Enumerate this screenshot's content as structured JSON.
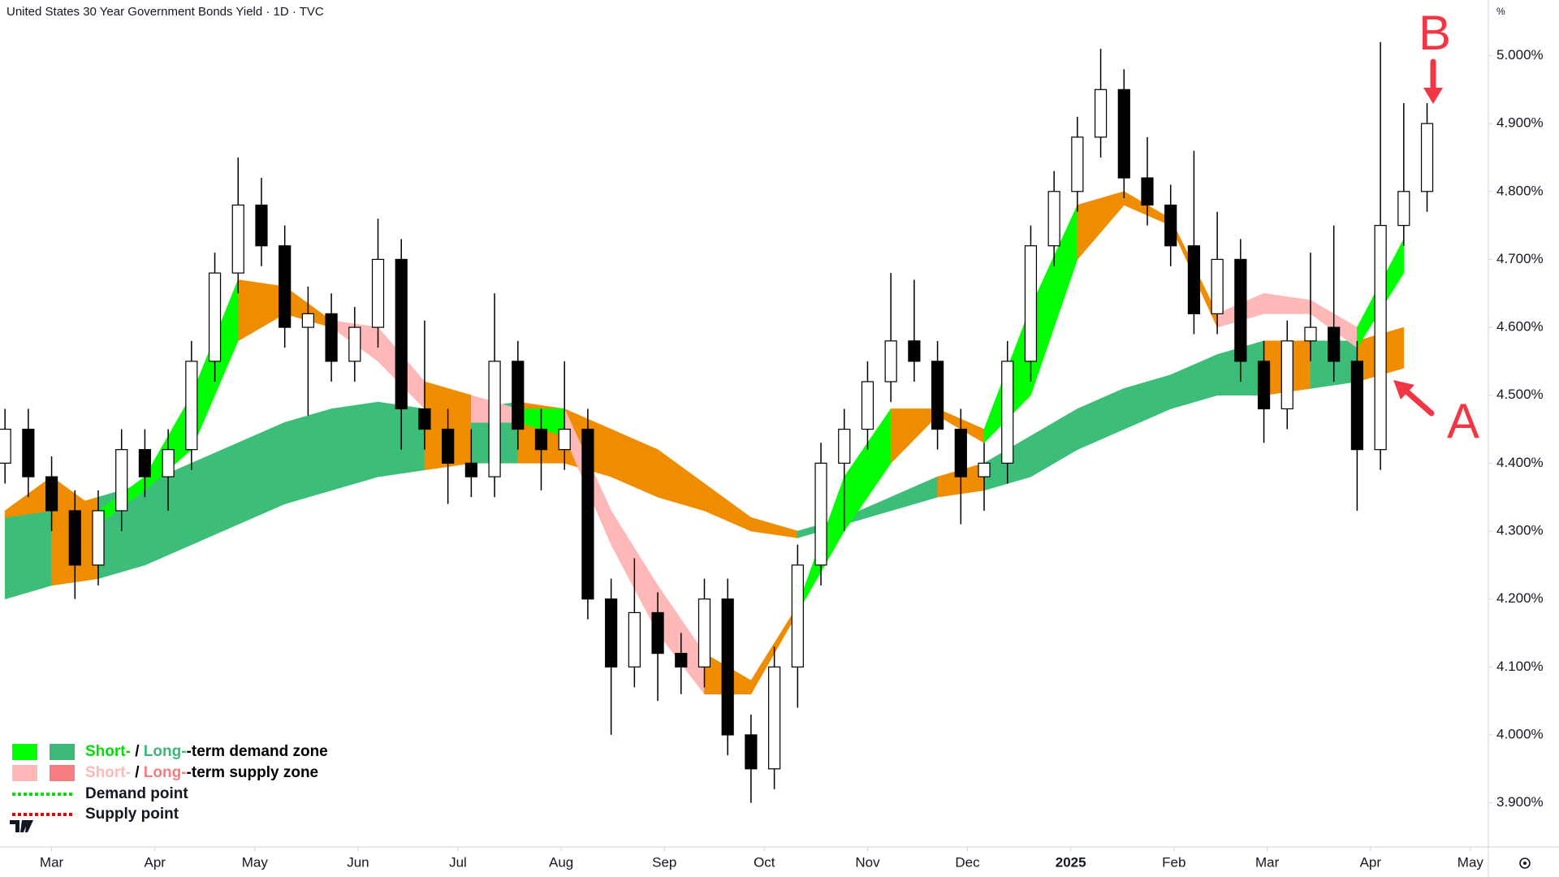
{
  "chart_data": {
    "type": "candlestick",
    "title": "United States 30 Year Government Bonds Yield · 1D · TVC",
    "unit_label": "%",
    "x": [
      -14,
      -7,
      0,
      7,
      14,
      21,
      28,
      35,
      42,
      49,
      56,
      63,
      70,
      77,
      84,
      91,
      98,
      105,
      112,
      119,
      126,
      133,
      140,
      147,
      154,
      161,
      168,
      175,
      182,
      189,
      196,
      203,
      210,
      217,
      224,
      231,
      238,
      245,
      252,
      259,
      266,
      273,
      280,
      287,
      294,
      301,
      308,
      315,
      322,
      329,
      336,
      343,
      350,
      357,
      364,
      371,
      378,
      385,
      392,
      399,
      406,
      413
    ],
    "open": [
      4.4,
      4.45,
      4.38,
      4.33,
      4.25,
      4.33,
      4.42,
      4.38,
      4.42,
      4.55,
      4.68,
      4.78,
      4.72,
      4.6,
      4.62,
      4.55,
      4.6,
      4.7,
      4.48,
      4.45,
      4.4,
      4.38,
      4.55,
      4.45,
      4.42,
      4.45,
      4.2,
      4.1,
      4.18,
      4.12,
      4.1,
      4.2,
      4.0,
      3.95,
      4.1,
      4.25,
      4.4,
      4.45,
      4.52,
      4.58,
      4.55,
      4.45,
      4.38,
      4.4,
      4.55,
      4.72,
      4.8,
      4.88,
      4.95,
      4.82,
      4.78,
      4.72,
      4.62,
      4.7,
      4.55,
      4.48,
      4.58,
      4.6,
      4.55,
      4.42,
      4.75,
      4.8
    ],
    "high": [
      4.48,
      4.48,
      4.41,
      4.36,
      4.36,
      4.45,
      4.45,
      4.45,
      4.58,
      4.71,
      4.85,
      4.82,
      4.75,
      4.66,
      4.65,
      4.63,
      4.76,
      4.73,
      4.61,
      4.48,
      4.45,
      4.65,
      4.58,
      4.48,
      4.55,
      4.48,
      4.23,
      4.26,
      4.21,
      4.15,
      4.23,
      4.23,
      4.03,
      4.13,
      4.28,
      4.43,
      4.48,
      4.55,
      4.68,
      4.67,
      4.58,
      4.48,
      4.43,
      4.58,
      4.75,
      4.83,
      4.91,
      5.01,
      4.98,
      4.88,
      4.81,
      4.86,
      4.77,
      4.73,
      4.58,
      4.61,
      4.71,
      4.75,
      4.58,
      5.02,
      4.93,
      4.93
    ],
    "low": [
      4.37,
      4.35,
      4.3,
      4.2,
      4.22,
      4.3,
      4.35,
      4.33,
      4.39,
      4.52,
      4.65,
      4.69,
      4.57,
      4.47,
      4.52,
      4.52,
      4.57,
      4.42,
      4.42,
      4.34,
      4.35,
      4.35,
      4.42,
      4.36,
      4.39,
      4.17,
      4.0,
      4.07,
      4.05,
      4.06,
      4.07,
      3.97,
      3.9,
      3.92,
      4.04,
      4.22,
      4.3,
      4.42,
      4.49,
      4.52,
      4.42,
      4.31,
      4.33,
      4.37,
      4.52,
      4.69,
      4.77,
      4.85,
      4.79,
      4.75,
      4.69,
      4.59,
      4.59,
      4.52,
      4.43,
      4.45,
      4.55,
      4.52,
      4.33,
      4.39,
      4.72,
      4.77
    ],
    "close": [
      4.45,
      4.38,
      4.33,
      4.25,
      4.33,
      4.42,
      4.38,
      4.42,
      4.55,
      4.68,
      4.78,
      4.72,
      4.6,
      4.62,
      4.55,
      4.6,
      4.7,
      4.48,
      4.45,
      4.4,
      4.38,
      4.55,
      4.45,
      4.42,
      4.45,
      4.2,
      4.1,
      4.18,
      4.12,
      4.1,
      4.2,
      4.0,
      3.95,
      4.1,
      4.25,
      4.4,
      4.45,
      4.52,
      4.58,
      4.55,
      4.45,
      4.38,
      4.4,
      4.55,
      4.72,
      4.8,
      4.88,
      4.95,
      4.82,
      4.78,
      4.72,
      4.62,
      4.7,
      4.55,
      4.48,
      4.58,
      4.6,
      4.55,
      4.42,
      4.75,
      4.8,
      4.9
    ],
    "up_color": "#ffffff",
    "down_color": "#000000",
    "bands": [
      {
        "x": [
          -14,
          0,
          14,
          28,
          42,
          56,
          70,
          84,
          98,
          112,
          126,
          140,
          154,
          168,
          182,
          196,
          210,
          224,
          238,
          252,
          266,
          280,
          294,
          308,
          322,
          336,
          350,
          364,
          378,
          392,
          406
        ],
        "upper": [
          4.32,
          4.33,
          4.35,
          4.37,
          4.4,
          4.43,
          4.46,
          4.48,
          4.49,
          4.48,
          4.48,
          4.49,
          4.48,
          4.45,
          4.42,
          4.37,
          4.32,
          4.3,
          4.32,
          4.35,
          4.38,
          4.4,
          4.44,
          4.48,
          4.51,
          4.53,
          4.56,
          4.58,
          4.58,
          4.58,
          4.6
        ],
        "lower": [
          4.2,
          4.22,
          4.23,
          4.25,
          4.28,
          4.31,
          4.34,
          4.36,
          4.38,
          4.39,
          4.4,
          4.4,
          4.4,
          4.38,
          4.35,
          4.33,
          4.3,
          4.29,
          4.31,
          4.33,
          4.35,
          4.36,
          4.38,
          4.42,
          4.45,
          4.48,
          4.5,
          4.5,
          4.51,
          4.52,
          4.54
        ],
        "colors": [
          "#3cbe78",
          "#f08c00",
          "#3cbe78",
          "#3cbe78",
          "#3cbe78",
          "#3cbe78",
          "#3cbe78",
          "#3cbe78",
          "#3cbe78",
          "#f08c00",
          "#3cbe78",
          "#f08c00",
          "#f08c00",
          "#f08c00",
          "#f08c00",
          "#f08c00",
          "#f08c00",
          "#3cbe78",
          "#3cbe78",
          "#3cbe78",
          "#f08c00",
          "#3cbe78",
          "#3cbe78",
          "#3cbe78",
          "#3cbe78",
          "#3cbe78",
          "#3cbe78",
          "#f08c00",
          "#3cbe78",
          "#f08c00",
          "#3cbe78"
        ]
      },
      {
        "x": [
          -14,
          0,
          14,
          28,
          42,
          56,
          70,
          84,
          98,
          112,
          126,
          140,
          154,
          168,
          182,
          196,
          210,
          224,
          238,
          252,
          266,
          280,
          294,
          308,
          322,
          336,
          350,
          364,
          378,
          392,
          406
        ],
        "upper": [
          4.33,
          4.38,
          4.33,
          4.38,
          4.5,
          4.67,
          4.66,
          4.61,
          4.6,
          4.52,
          4.5,
          4.48,
          4.48,
          4.33,
          4.22,
          4.12,
          4.08,
          4.19,
          4.38,
          4.48,
          4.48,
          4.45,
          4.63,
          4.78,
          4.8,
          4.76,
          4.62,
          4.65,
          4.64,
          4.6,
          4.73
        ],
        "lower": [
          4.32,
          4.33,
          4.31,
          4.36,
          4.42,
          4.58,
          4.62,
          4.6,
          4.55,
          4.48,
          4.46,
          4.46,
          4.44,
          4.28,
          4.15,
          4.06,
          4.06,
          4.18,
          4.3,
          4.4,
          4.47,
          4.43,
          4.5,
          4.7,
          4.78,
          4.75,
          4.6,
          4.62,
          4.62,
          4.57,
          4.68
        ],
        "colors": [
          "#f08c00",
          "#f08c00",
          "#00ff00",
          "#00ff00",
          "#00ff00",
          "#f08c00",
          "#f08c00",
          "#ffb8b8",
          "#ffb8b8",
          "#f08c00",
          "#ffb8b8",
          "#00ff00",
          "#ffb8b8",
          "#ffb8b8",
          "#ffb8b8",
          "#f08c00",
          "#f08c00",
          "#00ff00",
          "#00ff00",
          "#f08c00",
          "#f08c00",
          "#00ff00",
          "#00ff00",
          "#f08c00",
          "#f08c00",
          "#f08c00",
          "#ffb8b8",
          "#ffb8b8",
          "#ffb8b8",
          "#00ff00",
          "#00ff00"
        ]
      }
    ],
    "xlim": [
      -15.5,
      431.4
    ],
    "ylim": [
      3.835,
      5.052
    ],
    "xticks": [
      {
        "value": 0,
        "label": "Mar"
      },
      {
        "value": 31,
        "label": "Apr"
      },
      {
        "value": 61,
        "label": "May"
      },
      {
        "value": 92,
        "label": "Jun"
      },
      {
        "value": 122,
        "label": "Jul"
      },
      {
        "value": 153,
        "label": "Aug"
      },
      {
        "value": 184,
        "label": "Sep"
      },
      {
        "value": 214,
        "label": "Oct"
      },
      {
        "value": 245,
        "label": "Nov"
      },
      {
        "value": 275,
        "label": "Dec"
      },
      {
        "value": 306,
        "label": "2025"
      },
      {
        "value": 337,
        "label": "Feb"
      },
      {
        "value": 365,
        "label": "Mar"
      },
      {
        "value": 396,
        "label": "Apr"
      },
      {
        "value": 426,
        "label": "May"
      }
    ],
    "yticks": [
      {
        "value": 3.9,
        "label": "3.900%"
      },
      {
        "value": 4.0,
        "label": "4.000%"
      },
      {
        "value": 4.1,
        "label": "4.100%"
      },
      {
        "value": 4.2,
        "label": "4.200%"
      },
      {
        "value": 4.3,
        "label": "4.300%"
      },
      {
        "value": 4.4,
        "label": "4.400%"
      },
      {
        "value": 4.5,
        "label": "4.500%"
      },
      {
        "value": 4.6,
        "label": "4.600%"
      },
      {
        "value": 4.7,
        "label": "4.700%"
      },
      {
        "value": 4.8,
        "label": "4.800%"
      },
      {
        "value": 4.9,
        "label": "4.900%"
      },
      {
        "value": 5.0,
        "label": "5.000%"
      }
    ],
    "grid": false,
    "legend": [
      {
        "swatches": [
          "#00ff00",
          "#3cb878"
        ],
        "parts": [
          "Short-",
          " / ",
          "Long-",
          "-term demand zone"
        ],
        "part_colors": [
          "#00e000",
          "#000000",
          "#3cb878",
          "#000000"
        ]
      },
      {
        "swatches": [
          "#ffb8b8",
          "#f77c80"
        ],
        "parts": [
          "Short-",
          " / ",
          "Long-",
          "-term supply zone"
        ],
        "part_colors": [
          "#ffb8b8",
          "#000000",
          "#f77c80",
          "#000000"
        ]
      },
      {
        "line_color": "#00e000",
        "text": "Demand point"
      },
      {
        "line_color": "#e00000",
        "text": "Supply point"
      }
    ],
    "annotations": [
      "A",
      "B"
    ],
    "annotation_color": "#f23645"
  }
}
